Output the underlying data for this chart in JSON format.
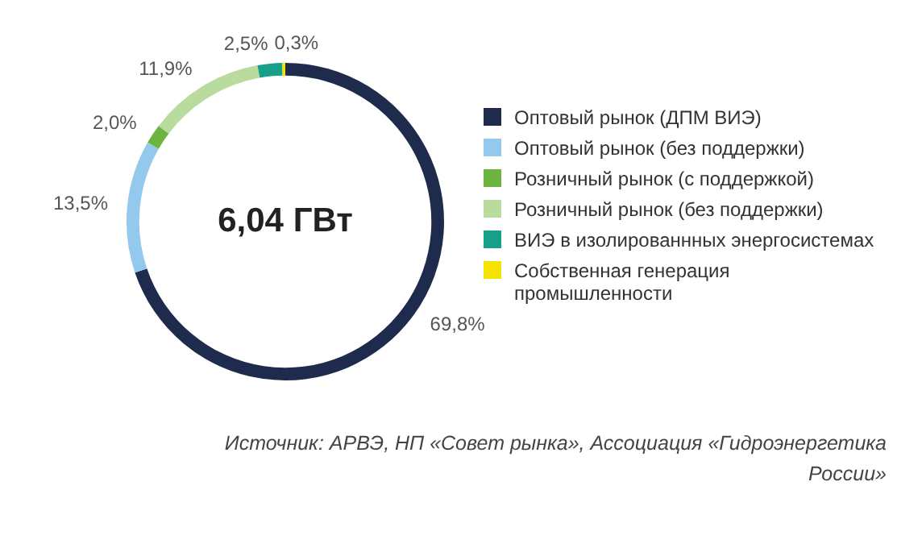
{
  "chart_data": {
    "type": "donut",
    "categories": [
      "Оптовый рынок (ДПМ ВИЭ)",
      "Оптовый рынок (без поддержки)",
      "Розничный рынок (с поддержкой)",
      "Розничный рынок (без поддержки)",
      "ВИЭ в изолированнных энергосистемах",
      "Собственная генерация промышленности"
    ],
    "values": [
      69.8,
      13.5,
      2.0,
      11.9,
      2.5,
      0.3
    ],
    "value_labels": [
      "69,8%",
      "13,5%",
      "2,0%",
      "11,9%",
      "2,5%",
      "0,3%"
    ],
    "colors": [
      "#1f2b4d",
      "#93c9ec",
      "#6db33f",
      "#b9dc9e",
      "#16a08a",
      "#f4e300"
    ],
    "legend": "right",
    "annotations": [
      "6,04 ГВт",
      "Источник: АРВЭ, НП «Совет рынка», Ассоциация «Гидроэнергетика России»"
    ]
  }
}
